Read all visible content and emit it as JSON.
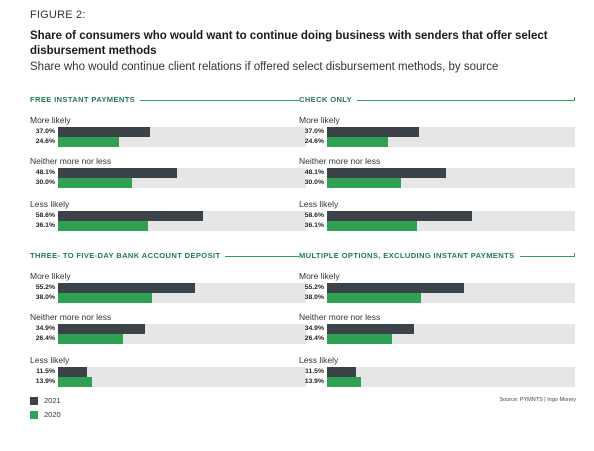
{
  "figure_label": "FIGURE 2:",
  "title": "Share of consumers who would want to continue doing business with senders that offer select disbursement methods",
  "subtitle": "Share who would continue client relations if offered select disbursement methods, by source",
  "colors": {
    "series_2021": "#3b4349",
    "series_2020": "#2ea153",
    "track": "#e6e6e6",
    "accent": "#2e9e57"
  },
  "legend": [
    {
      "label": "2021",
      "color": "#3b4349"
    },
    {
      "label": "2020",
      "color": "#2ea153"
    }
  ],
  "source": "Source: PYMNTS  |  Ingo Money",
  "chart_data": [
    {
      "type": "bar",
      "orientation": "horizontal",
      "title": "FREE INSTANT PAYMENTS",
      "categories": [
        "More likely",
        "Neither more nor less",
        "Less likely"
      ],
      "series": [
        {
          "name": "2021",
          "values": [
            37.0,
            48.1,
            58.6
          ],
          "labels": [
            "37.0%",
            "48.1%",
            "58.6%"
          ]
        },
        {
          "name": "2020",
          "values": [
            24.6,
            30.0,
            36.1
          ],
          "labels": [
            "24.6%",
            "30.0%",
            "36.1%"
          ]
        }
      ],
      "xlim": [
        0,
        100
      ]
    },
    {
      "type": "bar",
      "orientation": "horizontal",
      "title": "CHECK ONLY",
      "categories": [
        "More likely",
        "Neither more nor less",
        "Less likely"
      ],
      "series": [
        {
          "name": "2021",
          "values": [
            37.0,
            48.1,
            58.6
          ],
          "labels": [
            "37.0%",
            "48.1%",
            "58.6%"
          ]
        },
        {
          "name": "2020",
          "values": [
            24.6,
            30.0,
            36.1
          ],
          "labels": [
            "24.6%",
            "30.0%",
            "36.1%"
          ]
        }
      ],
      "xlim": [
        0,
        100
      ]
    },
    {
      "type": "bar",
      "orientation": "horizontal",
      "title": "THREE- TO FIVE-DAY BANK ACCOUNT DEPOSIT",
      "categories": [
        "More likely",
        "Neither more nor less",
        "Less likely"
      ],
      "series": [
        {
          "name": "2021",
          "values": [
            55.2,
            34.9,
            11.5
          ],
          "labels": [
            "55.2%",
            "34.9%",
            "11.5%"
          ]
        },
        {
          "name": "2020",
          "values": [
            38.0,
            26.4,
            13.9
          ],
          "labels": [
            "38.0%",
            "26.4%",
            "13.9%"
          ]
        }
      ],
      "xlim": [
        0,
        100
      ]
    },
    {
      "type": "bar",
      "orientation": "horizontal",
      "title": "MULTIPLE OPTIONS, EXCLUDING INSTANT PAYMENTS",
      "categories": [
        "More likely",
        "Neither more nor less",
        "Less likely"
      ],
      "series": [
        {
          "name": "2021",
          "values": [
            55.2,
            34.9,
            11.5
          ],
          "labels": [
            "55.2%",
            "34.9%",
            "11.5%"
          ]
        },
        {
          "name": "2020",
          "values": [
            38.0,
            26.4,
            13.9
          ],
          "labels": [
            "38.0%",
            "26.4%",
            "13.9%"
          ]
        }
      ],
      "xlim": [
        0,
        100
      ]
    }
  ]
}
